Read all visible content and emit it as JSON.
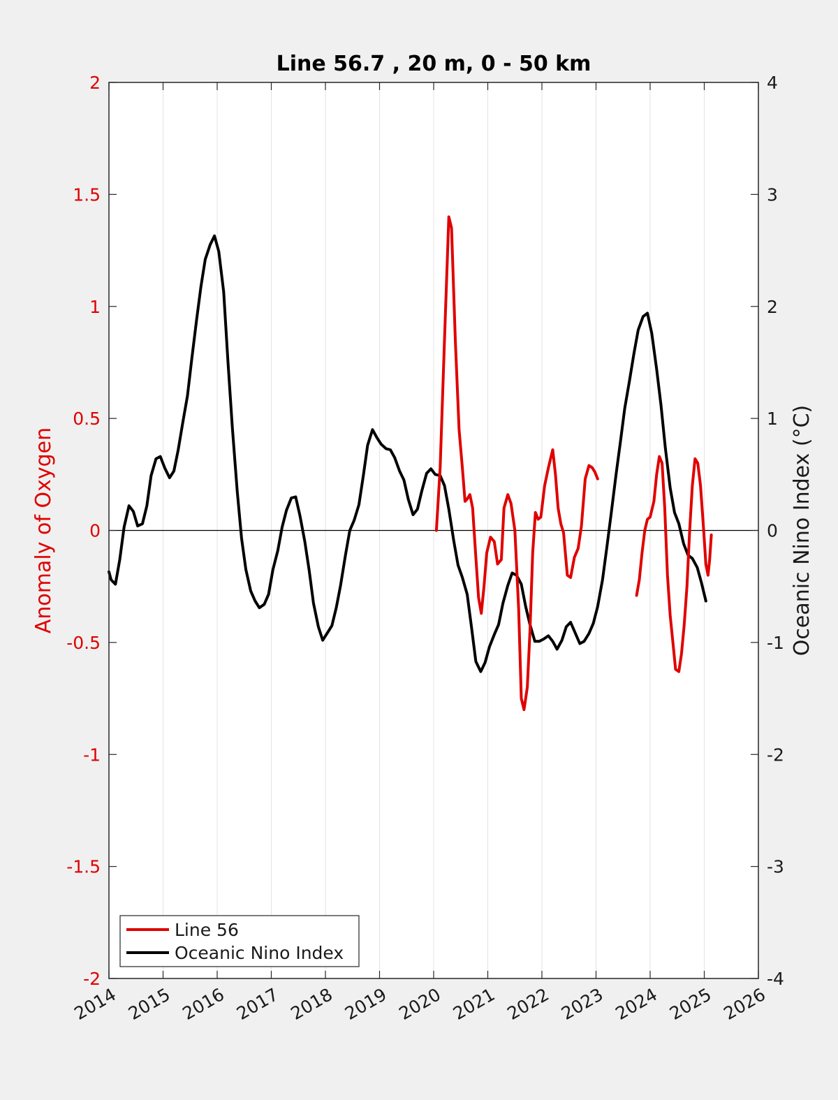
{
  "chart_data": {
    "type": "line",
    "title": "Line 56.7 , 20 m, 0 - 50 km",
    "xlabel": "",
    "ylabel_left": "Anomaly of Oxygen",
    "ylabel_right": "Oceanic Nino Index (°C)",
    "xlim": [
      2014,
      2026
    ],
    "ylim_left": [
      -2,
      2
    ],
    "ylim_right": [
      -4,
      4
    ],
    "x_ticks": [
      "2014",
      "2015",
      "2016",
      "2017",
      "2018",
      "2019",
      "2020",
      "2021",
      "2022",
      "2023",
      "2024",
      "2025",
      "2026"
    ],
    "y_ticks_left": [
      "-2",
      "-1.5",
      "-1",
      "-0.5",
      "0",
      "0.5",
      "1",
      "1.5",
      "2"
    ],
    "y_ticks_right": [
      "-4",
      "-3",
      "-2",
      "-1",
      "0",
      "1",
      "2",
      "3",
      "4"
    ],
    "grid": "vertical",
    "zero_line": true,
    "legend_position": "bottom-left",
    "colors": {
      "line56": "#e00000",
      "oni": "#000000",
      "axis_left": "#e00000",
      "axis_right": "#1a1a1a",
      "background": "#f0f0f0",
      "plot_background": "#ffffff"
    },
    "series": [
      {
        "name": "Line 56",
        "axis": "left",
        "segments": [
          [
            [
              2020.05,
              0.0
            ],
            [
              2020.12,
              0.28
            ],
            [
              2020.2,
              0.85
            ],
            [
              2020.28,
              1.4
            ],
            [
              2020.33,
              1.35
            ],
            [
              2020.4,
              0.85
            ],
            [
              2020.47,
              0.45
            ],
            [
              2020.53,
              0.28
            ],
            [
              2020.58,
              0.13
            ],
            [
              2020.62,
              0.14
            ],
            [
              2020.67,
              0.16
            ],
            [
              2020.72,
              0.1
            ],
            [
              2020.78,
              -0.12
            ],
            [
              2020.83,
              -0.3
            ],
            [
              2020.88,
              -0.37
            ],
            [
              2020.93,
              -0.25
            ],
            [
              2020.98,
              -0.1
            ],
            [
              2021.05,
              -0.03
            ],
            [
              2021.12,
              -0.05
            ],
            [
              2021.18,
              -0.15
            ],
            [
              2021.25,
              -0.13
            ],
            [
              2021.3,
              0.1
            ],
            [
              2021.37,
              0.16
            ],
            [
              2021.43,
              0.12
            ],
            [
              2021.5,
              0.0
            ],
            [
              2021.57,
              -0.35
            ],
            [
              2021.62,
              -0.75
            ],
            [
              2021.67,
              -0.8
            ],
            [
              2021.73,
              -0.7
            ],
            [
              2021.78,
              -0.45
            ],
            [
              2021.83,
              -0.1
            ],
            [
              2021.88,
              0.08
            ],
            [
              2021.93,
              0.05
            ],
            [
              2021.98,
              0.06
            ],
            [
              2022.05,
              0.2
            ],
            [
              2022.12,
              0.28
            ],
            [
              2022.2,
              0.36
            ],
            [
              2022.25,
              0.25
            ],
            [
              2022.3,
              0.1
            ],
            [
              2022.35,
              0.03
            ],
            [
              2022.4,
              -0.01
            ],
            [
              2022.47,
              -0.2
            ],
            [
              2022.53,
              -0.21
            ],
            [
              2022.6,
              -0.12
            ],
            [
              2022.67,
              -0.08
            ],
            [
              2022.73,
              0.02
            ],
            [
              2022.8,
              0.23
            ],
            [
              2022.87,
              0.29
            ],
            [
              2022.93,
              0.28
            ],
            [
              2022.98,
              0.26
            ],
            [
              2023.03,
              0.23
            ]
          ],
          [
            [
              2023.75,
              -0.29
            ],
            [
              2023.8,
              -0.22
            ],
            [
              2023.85,
              -0.1
            ],
            [
              2023.9,
              0.0
            ],
            [
              2023.95,
              0.05
            ],
            [
              2024.0,
              0.06
            ],
            [
              2024.07,
              0.13
            ],
            [
              2024.12,
              0.25
            ],
            [
              2024.17,
              0.33
            ],
            [
              2024.22,
              0.3
            ],
            [
              2024.27,
              0.1
            ],
            [
              2024.32,
              -0.2
            ],
            [
              2024.37,
              -0.38
            ],
            [
              2024.42,
              -0.5
            ],
            [
              2024.47,
              -0.62
            ],
            [
              2024.53,
              -0.63
            ],
            [
              2024.58,
              -0.55
            ],
            [
              2024.63,
              -0.42
            ],
            [
              2024.68,
              -0.25
            ],
            [
              2024.73,
              0.0
            ],
            [
              2024.78,
              0.2
            ],
            [
              2024.83,
              0.32
            ],
            [
              2024.88,
              0.3
            ],
            [
              2024.93,
              0.2
            ],
            [
              2024.98,
              0.03
            ],
            [
              2025.03,
              -0.15
            ],
            [
              2025.07,
              -0.2
            ],
            [
              2025.1,
              -0.13
            ],
            [
              2025.13,
              -0.02
            ]
          ]
        ]
      },
      {
        "name": "Oceanic Nino Index",
        "axis": "right",
        "segments": [
          [
            [
              2014.0,
              -0.37
            ],
            [
              2014.04,
              -0.44
            ],
            [
              2014.12,
              -0.48
            ],
            [
              2014.2,
              -0.26
            ],
            [
              2014.28,
              0.03
            ],
            [
              2014.37,
              0.22
            ],
            [
              2014.45,
              0.17
            ],
            [
              2014.53,
              0.04
            ],
            [
              2014.62,
              0.06
            ],
            [
              2014.7,
              0.22
            ],
            [
              2014.78,
              0.49
            ],
            [
              2014.87,
              0.64
            ],
            [
              2014.95,
              0.66
            ],
            [
              2015.03,
              0.56
            ],
            [
              2015.12,
              0.47
            ],
            [
              2015.2,
              0.53
            ],
            [
              2015.28,
              0.72
            ],
            [
              2015.37,
              0.98
            ],
            [
              2015.45,
              1.2
            ],
            [
              2015.53,
              1.53
            ],
            [
              2015.62,
              1.88
            ],
            [
              2015.7,
              2.18
            ],
            [
              2015.78,
              2.42
            ],
            [
              2015.87,
              2.55
            ],
            [
              2015.95,
              2.63
            ],
            [
              2016.03,
              2.49
            ],
            [
              2016.12,
              2.13
            ],
            [
              2016.2,
              1.5
            ],
            [
              2016.28,
              0.92
            ],
            [
              2016.37,
              0.35
            ],
            [
              2016.45,
              -0.07
            ],
            [
              2016.53,
              -0.35
            ],
            [
              2016.62,
              -0.54
            ],
            [
              2016.7,
              -0.63
            ],
            [
              2016.78,
              -0.69
            ],
            [
              2016.87,
              -0.66
            ],
            [
              2016.95,
              -0.57
            ],
            [
              2017.03,
              -0.35
            ],
            [
              2017.12,
              -0.18
            ],
            [
              2017.2,
              0.03
            ],
            [
              2017.28,
              0.18
            ],
            [
              2017.37,
              0.29
            ],
            [
              2017.45,
              0.3
            ],
            [
              2017.53,
              0.13
            ],
            [
              2017.62,
              -0.1
            ],
            [
              2017.7,
              -0.36
            ],
            [
              2017.78,
              -0.65
            ],
            [
              2017.87,
              -0.86
            ],
            [
              2017.95,
              -0.98
            ],
            [
              2018.03,
              -0.92
            ],
            [
              2018.12,
              -0.85
            ],
            [
              2018.2,
              -0.69
            ],
            [
              2018.28,
              -0.49
            ],
            [
              2018.37,
              -0.22
            ],
            [
              2018.45,
              0.0
            ],
            [
              2018.53,
              0.09
            ],
            [
              2018.62,
              0.23
            ],
            [
              2018.7,
              0.49
            ],
            [
              2018.78,
              0.76
            ],
            [
              2018.87,
              0.9
            ],
            [
              2018.95,
              0.83
            ],
            [
              2019.03,
              0.77
            ],
            [
              2019.12,
              0.73
            ],
            [
              2019.2,
              0.72
            ],
            [
              2019.28,
              0.65
            ],
            [
              2019.37,
              0.53
            ],
            [
              2019.45,
              0.45
            ],
            [
              2019.53,
              0.28
            ],
            [
              2019.62,
              0.14
            ],
            [
              2019.7,
              0.19
            ],
            [
              2019.78,
              0.35
            ],
            [
              2019.87,
              0.51
            ],
            [
              2019.95,
              0.55
            ],
            [
              2020.03,
              0.5
            ],
            [
              2020.12,
              0.49
            ],
            [
              2020.2,
              0.4
            ],
            [
              2020.28,
              0.19
            ],
            [
              2020.37,
              -0.09
            ],
            [
              2020.45,
              -0.31
            ],
            [
              2020.53,
              -0.42
            ],
            [
              2020.62,
              -0.57
            ],
            [
              2020.7,
              -0.87
            ],
            [
              2020.78,
              -1.17
            ],
            [
              2020.87,
              -1.26
            ],
            [
              2020.95,
              -1.18
            ],
            [
              2021.03,
              -1.04
            ],
            [
              2021.12,
              -0.93
            ],
            [
              2021.2,
              -0.84
            ],
            [
              2021.28,
              -0.65
            ],
            [
              2021.37,
              -0.49
            ],
            [
              2021.45,
              -0.38
            ],
            [
              2021.53,
              -0.4
            ],
            [
              2021.62,
              -0.48
            ],
            [
              2021.7,
              -0.68
            ],
            [
              2021.78,
              -0.84
            ],
            [
              2021.87,
              -0.99
            ],
            [
              2021.95,
              -0.99
            ],
            [
              2022.03,
              -0.97
            ],
            [
              2022.12,
              -0.94
            ],
            [
              2022.2,
              -0.99
            ],
            [
              2022.28,
              -1.06
            ],
            [
              2022.37,
              -0.98
            ],
            [
              2022.45,
              -0.86
            ],
            [
              2022.53,
              -0.82
            ],
            [
              2022.62,
              -0.92
            ],
            [
              2022.7,
              -1.01
            ],
            [
              2022.78,
              -0.99
            ],
            [
              2022.87,
              -0.92
            ],
            [
              2022.95,
              -0.83
            ],
            [
              2023.03,
              -0.68
            ],
            [
              2023.12,
              -0.44
            ],
            [
              2023.2,
              -0.15
            ],
            [
              2023.28,
              0.15
            ],
            [
              2023.37,
              0.5
            ],
            [
              2023.45,
              0.79
            ],
            [
              2023.53,
              1.09
            ],
            [
              2023.62,
              1.34
            ],
            [
              2023.7,
              1.58
            ],
            [
              2023.78,
              1.79
            ],
            [
              2023.87,
              1.91
            ],
            [
              2023.95,
              1.94
            ],
            [
              2024.03,
              1.76
            ],
            [
              2024.12,
              1.44
            ],
            [
              2024.2,
              1.12
            ],
            [
              2024.28,
              0.74
            ],
            [
              2024.37,
              0.38
            ],
            [
              2024.45,
              0.16
            ],
            [
              2024.53,
              0.06
            ],
            [
              2024.62,
              -0.12
            ],
            [
              2024.7,
              -0.22
            ],
            [
              2024.78,
              -0.25
            ],
            [
              2024.87,
              -0.33
            ],
            [
              2024.95,
              -0.47
            ],
            [
              2025.03,
              -0.63
            ]
          ]
        ]
      }
    ]
  },
  "legend": {
    "entries": [
      {
        "label": "Line 56",
        "color": "#e00000"
      },
      {
        "label": "Oceanic Nino Index",
        "color": "#000000"
      }
    ]
  }
}
